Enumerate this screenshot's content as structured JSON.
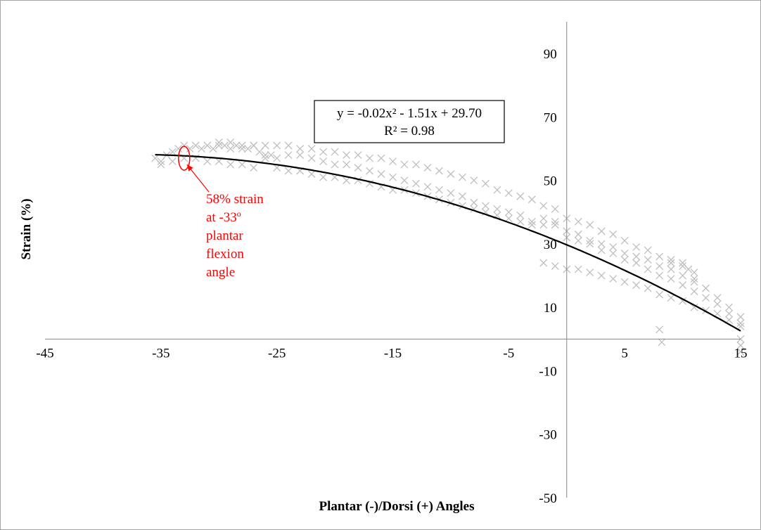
{
  "chart_data": {
    "type": "scatter",
    "title": "",
    "xlabel": "Plantar (-)/Dorsi (+) Angles",
    "ylabel": "Strain (%)",
    "xlim": [
      -45,
      15
    ],
    "ylim": [
      -50,
      100
    ],
    "x_ticks": [
      -45,
      -35,
      -25,
      -15,
      -5,
      5,
      15
    ],
    "y_ticks": [
      90,
      70,
      50,
      30,
      10,
      -10,
      -30,
      -50
    ],
    "grid": false,
    "legend": "none",
    "marker": "x",
    "colors": {
      "points": "#bfbfbf",
      "trend": "#000000",
      "annotation": "#ff0000"
    },
    "series": [
      {
        "kind": "points",
        "points": [
          [
            -35.5,
            57
          ],
          [
            -35,
            56
          ],
          [
            -34.5,
            58
          ],
          [
            -34,
            59
          ],
          [
            -33.5,
            60
          ],
          [
            -33,
            61
          ],
          [
            -32.5,
            60
          ],
          [
            -32,
            61
          ],
          [
            -31.5,
            60
          ],
          [
            -31,
            61
          ],
          [
            -30.5,
            60
          ],
          [
            -30,
            61
          ],
          [
            -29.5,
            61
          ],
          [
            -29,
            60
          ],
          [
            -28.5,
            61
          ],
          [
            -28,
            60
          ],
          [
            -27.5,
            60
          ],
          [
            -27,
            61
          ],
          [
            -26.5,
            59
          ],
          [
            -26,
            58
          ],
          [
            -25.5,
            58
          ],
          [
            -25,
            57
          ],
          [
            -24,
            58
          ],
          [
            -23,
            58
          ],
          [
            -22,
            57
          ],
          [
            -21,
            56
          ],
          [
            -20,
            55
          ],
          [
            -19,
            55
          ],
          [
            -18,
            54
          ],
          [
            -17,
            53
          ],
          [
            -16,
            52
          ],
          [
            -15,
            51
          ],
          [
            -14,
            50
          ],
          [
            -13,
            49
          ],
          [
            -12,
            48
          ],
          [
            -11,
            47
          ],
          [
            -10,
            46
          ],
          [
            -9,
            45
          ],
          [
            -8,
            43
          ],
          [
            -7,
            42
          ],
          [
            -6,
            41
          ],
          [
            -5,
            40
          ],
          [
            -4,
            39
          ],
          [
            -3,
            37
          ],
          [
            -2,
            36
          ],
          [
            -1,
            36
          ],
          [
            0,
            34
          ],
          [
            1,
            33
          ],
          [
            2,
            31
          ],
          [
            3,
            30
          ],
          [
            4,
            29
          ],
          [
            5,
            27
          ],
          [
            6,
            26
          ],
          [
            7,
            25
          ],
          [
            8,
            23
          ],
          [
            9,
            22
          ],
          [
            10,
            20
          ],
          [
            11,
            18
          ],
          [
            12,
            16
          ],
          [
            13,
            13
          ],
          [
            14,
            10
          ],
          [
            15,
            7
          ],
          [
            -35,
            55
          ],
          [
            -34,
            56
          ],
          [
            -33,
            57
          ],
          [
            -32,
            57
          ],
          [
            -31,
            56
          ],
          [
            -30,
            56
          ],
          [
            -29,
            55
          ],
          [
            -28,
            55
          ],
          [
            -27,
            54
          ],
          [
            -26,
            57
          ],
          [
            -25,
            54
          ],
          [
            -24,
            53
          ],
          [
            -23,
            53
          ],
          [
            -22,
            52
          ],
          [
            -21,
            51
          ],
          [
            -20,
            51
          ],
          [
            -19,
            50
          ],
          [
            -18,
            50
          ],
          [
            -17,
            49
          ],
          [
            -16,
            48
          ],
          [
            -15,
            47
          ],
          [
            -14,
            47
          ],
          [
            -13,
            46
          ],
          [
            -12,
            45
          ],
          [
            -11,
            44
          ],
          [
            -10,
            43
          ],
          [
            -9,
            42
          ],
          [
            -8,
            41
          ],
          [
            -7,
            40
          ],
          [
            -6,
            39
          ],
          [
            -5,
            38
          ],
          [
            -4,
            37
          ],
          [
            -3,
            36
          ],
          [
            -2,
            38
          ],
          [
            -1,
            37
          ],
          [
            0,
            32
          ],
          [
            1,
            31
          ],
          [
            2,
            30
          ],
          [
            3,
            28
          ],
          [
            4,
            27
          ],
          [
            5,
            25
          ],
          [
            6,
            24
          ],
          [
            7,
            22
          ],
          [
            8,
            20
          ],
          [
            9,
            19
          ],
          [
            10,
            17
          ],
          [
            11,
            15
          ],
          [
            12,
            13
          ],
          [
            13,
            11
          ],
          [
            14,
            8
          ],
          [
            15,
            5
          ],
          [
            -30,
            62
          ],
          [
            -29,
            62
          ],
          [
            -28,
            61
          ],
          [
            -27,
            61
          ],
          [
            -26,
            61
          ],
          [
            -25,
            61
          ],
          [
            -24,
            61
          ],
          [
            -23,
            60
          ],
          [
            -22,
            60
          ],
          [
            -21,
            59
          ],
          [
            -20,
            59
          ],
          [
            -19,
            58
          ],
          [
            -18,
            58
          ],
          [
            -17,
            57
          ],
          [
            -16,
            57
          ],
          [
            -15,
            56
          ],
          [
            -14,
            55
          ],
          [
            -13,
            55
          ],
          [
            -12,
            54
          ],
          [
            -11,
            53
          ],
          [
            -10,
            52
          ],
          [
            -9,
            51
          ],
          [
            -8,
            50
          ],
          [
            -7,
            49
          ],
          [
            -6,
            47
          ],
          [
            -5,
            46
          ],
          [
            -4,
            45
          ],
          [
            -3,
            44
          ],
          [
            -2,
            42
          ],
          [
            -1,
            41
          ],
          [
            0,
            38
          ],
          [
            1,
            37
          ],
          [
            2,
            36
          ],
          [
            3,
            34
          ],
          [
            4,
            33
          ],
          [
            5,
            31
          ],
          [
            6,
            29
          ],
          [
            7,
            28
          ],
          [
            8,
            26
          ],
          [
            9,
            25
          ],
          [
            10,
            23
          ],
          [
            11,
            21
          ],
          [
            -2,
            24
          ],
          [
            -1,
            23
          ],
          [
            0,
            22
          ],
          [
            1,
            22
          ],
          [
            2,
            21
          ],
          [
            3,
            20
          ],
          [
            4,
            19
          ],
          [
            5,
            18
          ],
          [
            6,
            17
          ],
          [
            7,
            16
          ],
          [
            8,
            14
          ],
          [
            9,
            13
          ],
          [
            10,
            12
          ],
          [
            11,
            10
          ],
          [
            12,
            9
          ],
          [
            13,
            8
          ],
          [
            14,
            6
          ],
          [
            15,
            4
          ],
          [
            9,
            24
          ],
          [
            10,
            24
          ],
          [
            10.5,
            22
          ],
          [
            11,
            19
          ],
          [
            8,
            3
          ],
          [
            8.2,
            -1
          ],
          [
            15,
            0
          ],
          [
            15,
            -2
          ],
          [
            15,
            -4
          ]
        ]
      },
      {
        "kind": "trend",
        "name": "",
        "equation": "y = -0.02x² - 1.51x + 29.70",
        "coeffs": [
          -0.02,
          -1.51,
          29.7
        ],
        "x_range": [
          -35.5,
          15
        ]
      }
    ],
    "equation_box": {
      "line1": "y = -0.02x² - 1.51x + 29.70",
      "line2": "R² = 0.98"
    },
    "annotation": {
      "lines": [
        "58% strain",
        "at -33º",
        "plantar",
        "flexion",
        "angle"
      ],
      "point": [
        -33,
        57
      ]
    }
  }
}
